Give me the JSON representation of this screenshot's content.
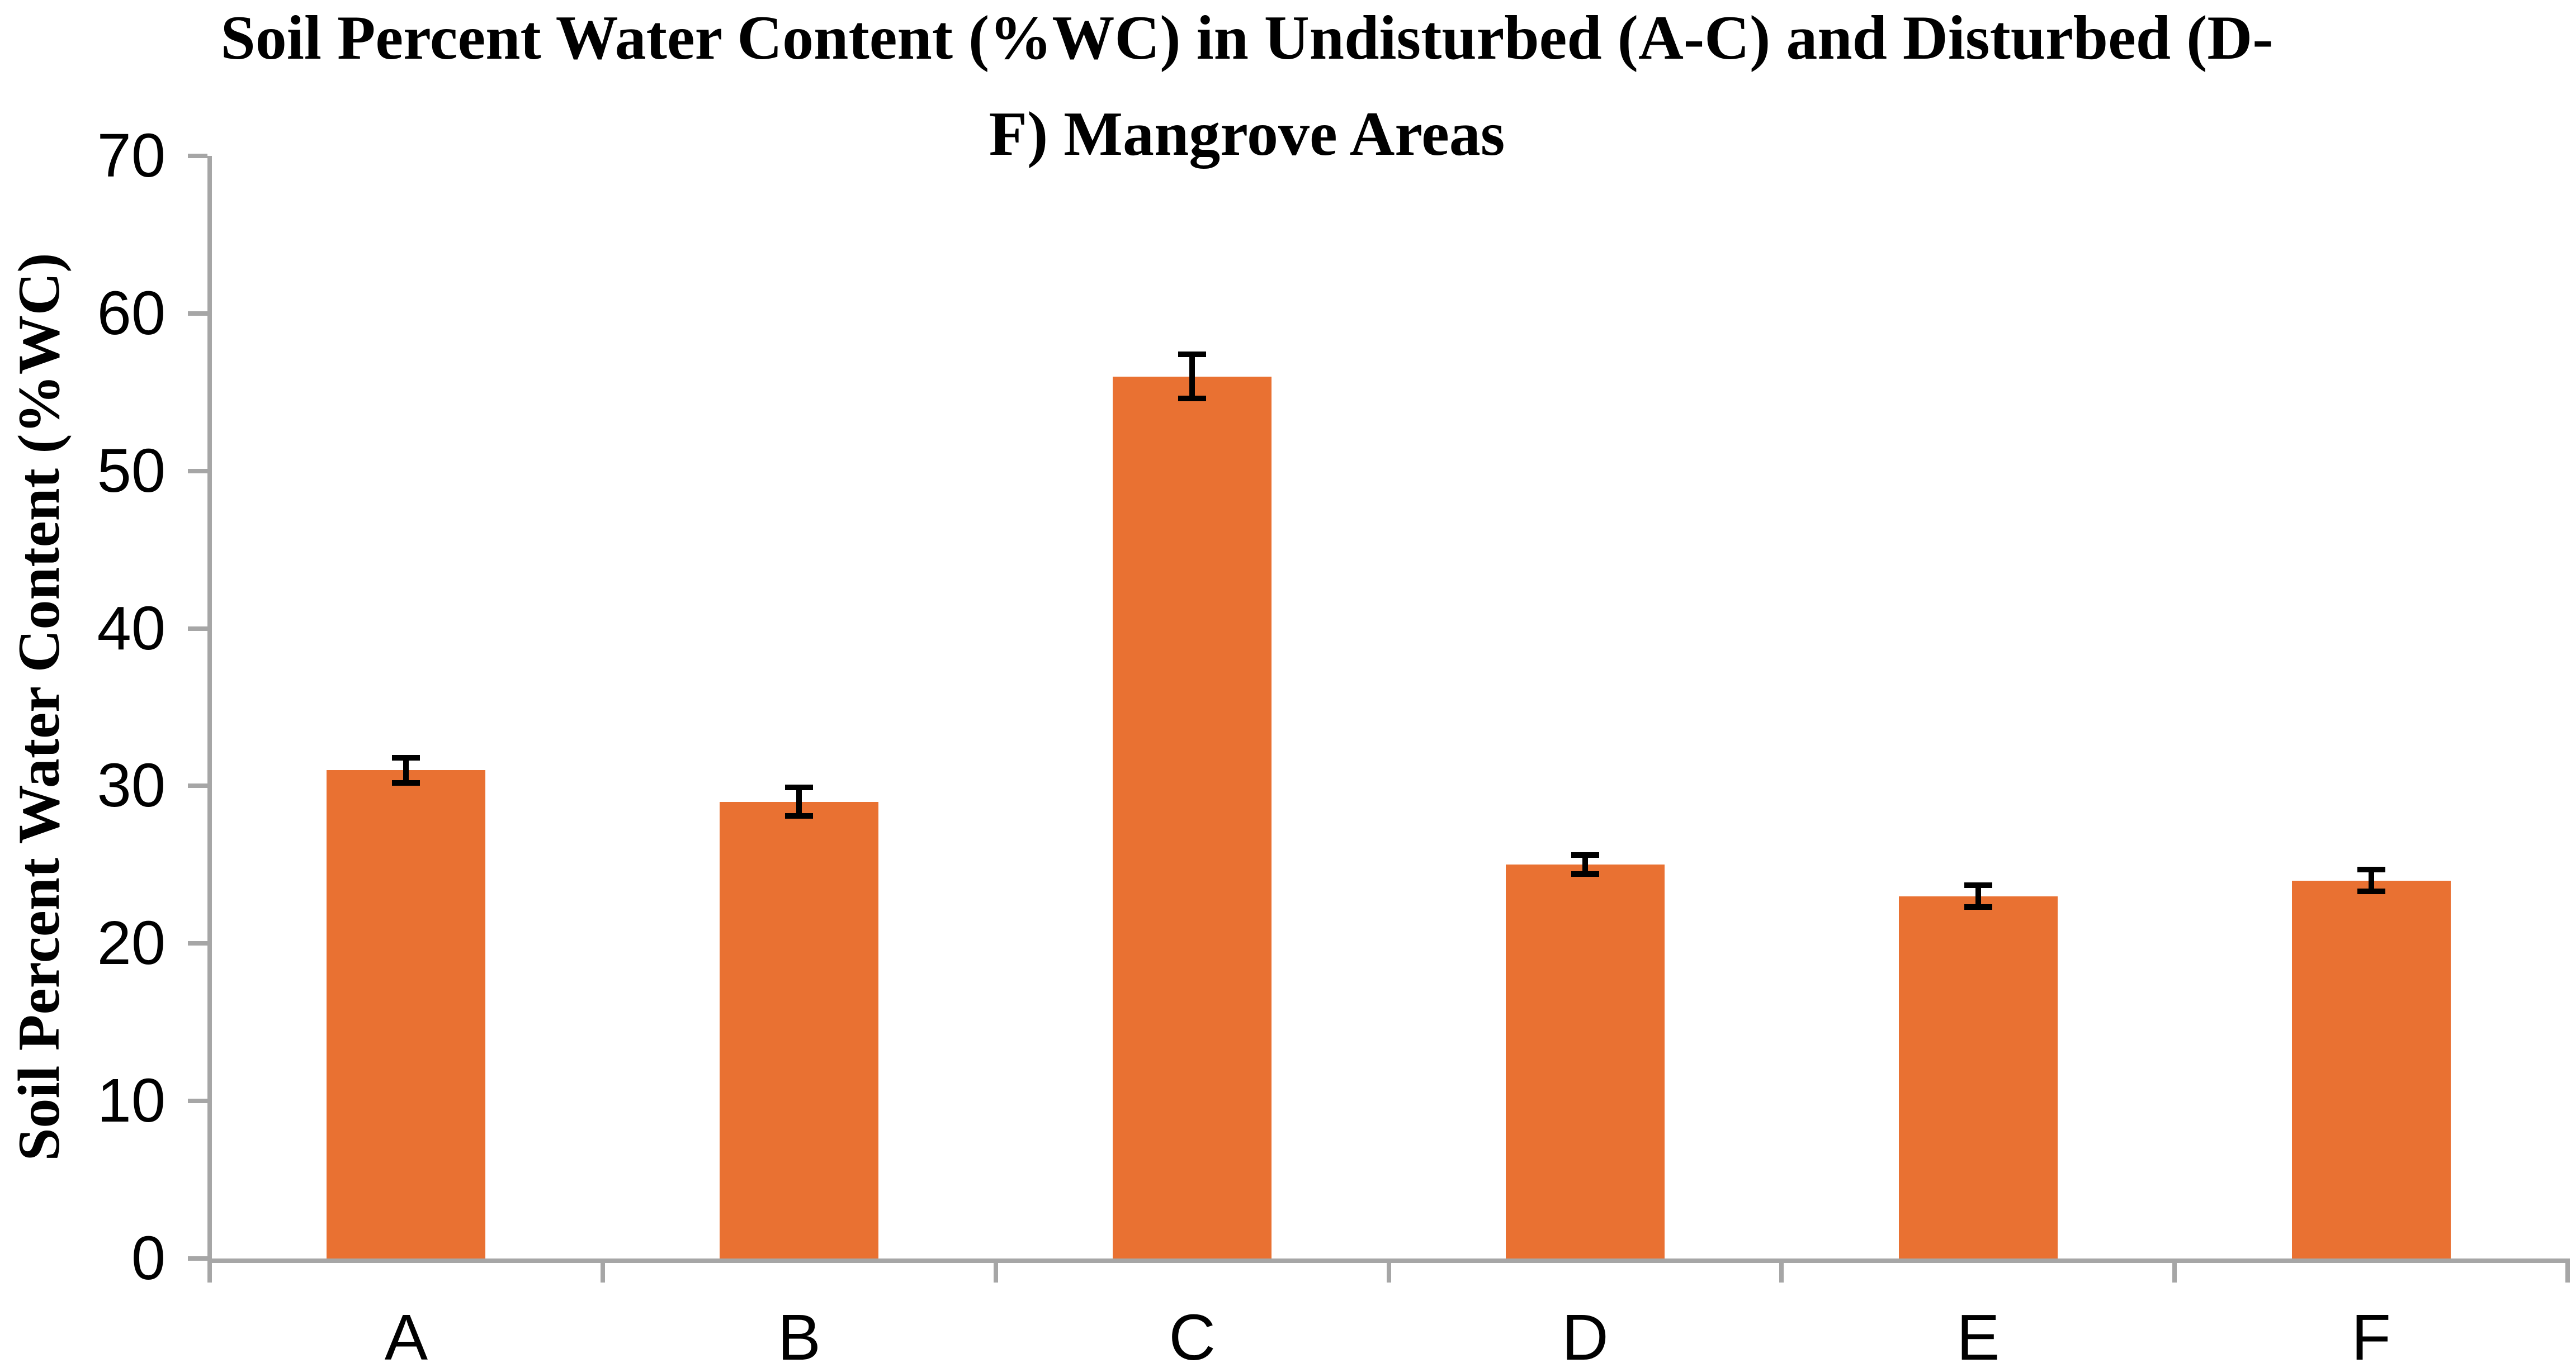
{
  "chart_data": {
    "type": "bar",
    "title": "Soil Percent Water Content (%WC) in Undisturbed (A-C) and Disturbed (D-F) Mangrove Areas",
    "title_lines": [
      "Soil Percent Water Content (%WC) in Undisturbed (A-C) and Disturbed (D-",
      "F) Mangrove Areas"
    ],
    "xlabel": "",
    "ylabel": "Soil Percent Water Content (%WC)",
    "categories": [
      "A",
      "B",
      "C",
      "D",
      "E",
      "F"
    ],
    "series": [
      {
        "name": "Soil Percent Water Content",
        "values": [
          31,
          29,
          56,
          25,
          23,
          24
        ],
        "error_bars": [
          0.8,
          0.9,
          1.4,
          0.6,
          0.7,
          0.7
        ]
      }
    ],
    "ylim": [
      0,
      70
    ],
    "yticks": [
      0,
      10,
      20,
      30,
      40,
      50,
      60,
      70
    ],
    "grid": false,
    "legend_position": "none",
    "group_labels": {
      "undisturbed": "A-C",
      "disturbed": "D-F"
    },
    "colors": {
      "bar": "#E97132",
      "axis": "#A6A6A6",
      "error_bar": "#000000",
      "text": "#000000",
      "background": "#FFFFFF"
    }
  }
}
